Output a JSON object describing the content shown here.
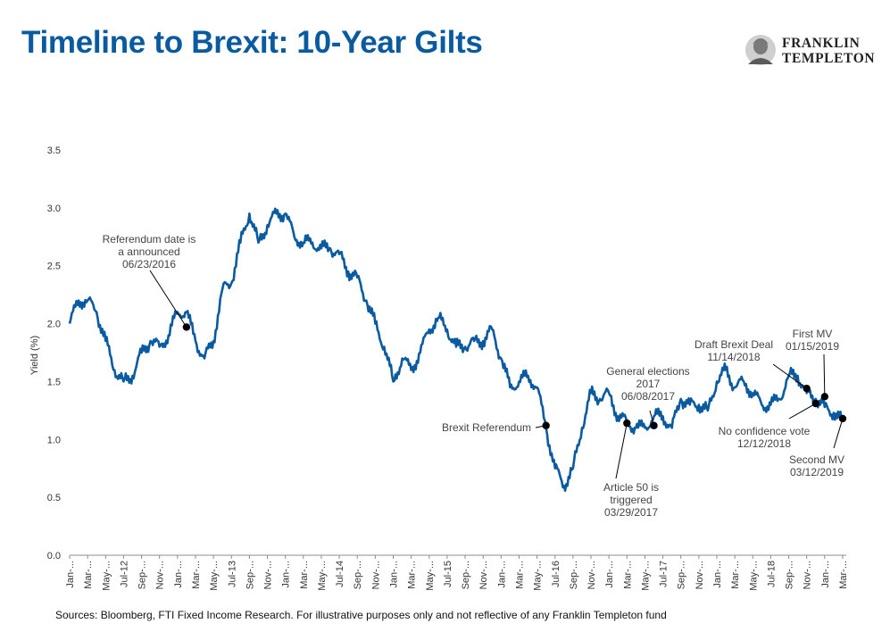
{
  "page": {
    "title": "Timeline to Brexit: 10-Year Gilts",
    "footnote": "Sources: Bloomberg, FTI Fixed Income Research. For illustrative purposes only and not reflective of any Franklin Templeton fund",
    "logo": {
      "line1": "FRANKLIN",
      "line2": "TEMPLETON"
    }
  },
  "chart_data": {
    "type": "line",
    "title": "Timeline to Brexit: 10-Year Gilts",
    "xlabel": "",
    "ylabel": "Yield (%)",
    "ylim": [
      0,
      3.5
    ],
    "yticks": [
      "0.0",
      "0.5",
      "1.0",
      "1.5",
      "2.0",
      "2.5",
      "3.0",
      "3.5"
    ],
    "grid": false,
    "line_color": "#0a5aa0",
    "xticks": [
      "Jan-12",
      "Mar-12",
      "May-12",
      "Jul-12",
      "Sep-12",
      "Nov-12",
      "Jan-13",
      "Mar-13",
      "May-13",
      "Jul-13",
      "Sep-13",
      "Nov-13",
      "Jan-14",
      "Mar-14",
      "May-14",
      "Jul-14",
      "Sep-14",
      "Nov-14",
      "Jan-15",
      "Mar-15",
      "May-15",
      "Jul-15",
      "Sep-15",
      "Nov-15",
      "Jan-16",
      "Mar-16",
      "May-16",
      "Jul-16",
      "Sep-16",
      "Nov-16",
      "Jan-17",
      "Mar-17",
      "May-17",
      "Jul-17",
      "Sep-17",
      "Nov-17",
      "Jan-18",
      "Mar-18",
      "May-18",
      "Jul-18",
      "Sep-18",
      "Nov-18",
      "Jan-19",
      "Mar-19"
    ],
    "xtick_labels": [
      "Jan-...",
      "Mar-...",
      "May-...",
      "Jul-12",
      "Sep-...",
      "Nov-...",
      "Jan-...",
      "Mar-...",
      "May-...",
      "Jul-13",
      "Sep-...",
      "Nov-...",
      "Jan-...",
      "Mar-...",
      "May-...",
      "Jul-14",
      "Sep-...",
      "Nov-...",
      "Jan-...",
      "Mar-...",
      "May-...",
      "Jul-15",
      "Sep-...",
      "Nov-...",
      "Jan-...",
      "Mar-...",
      "May-...",
      "Jul-16",
      "Sep-...",
      "Nov-...",
      "Jan-...",
      "Mar-...",
      "May-...",
      "Jul-17",
      "Sep-...",
      "Nov-...",
      "Jan-...",
      "Mar-...",
      "May-...",
      "Jul-18",
      "Sep-...",
      "Nov-...",
      "Jan-...",
      "Mar-..."
    ],
    "series": [
      {
        "x": [
          "Jan-12",
          "Feb-12",
          "Mar-12",
          "Apr-12",
          "May-12",
          "Jun-12",
          "Jul-12",
          "Aug-12",
          "Sep-12",
          "Oct-12",
          "Nov-12",
          "Dec-12",
          "Jan-13",
          "Feb-13",
          "Mar-13",
          "Apr-13",
          "May-13",
          "Jun-13",
          "Jul-13",
          "Aug-13",
          "Sep-13",
          "Oct-13",
          "Nov-13",
          "Dec-13",
          "Jan-14",
          "Feb-14",
          "Mar-14",
          "Apr-14",
          "May-14",
          "Jun-14",
          "Jul-14",
          "Aug-14",
          "Sep-14",
          "Oct-14",
          "Nov-14",
          "Dec-14",
          "Jan-15",
          "Feb-15",
          "Mar-15",
          "Apr-15",
          "May-15",
          "Jun-15",
          "Jul-15",
          "Aug-15",
          "Sep-15",
          "Oct-15",
          "Nov-15",
          "Dec-15",
          "Jan-16",
          "Feb-16",
          "Mar-16",
          "Apr-16",
          "May-16",
          "Jun-16",
          "Jul-16",
          "Aug-16",
          "Sep-16",
          "Oct-16",
          "Nov-16",
          "Dec-16",
          "Jan-17",
          "Feb-17",
          "Mar-17",
          "Apr-17",
          "May-17",
          "Jun-17",
          "Jul-17",
          "Aug-17",
          "Sep-17",
          "Oct-17",
          "Nov-17",
          "Dec-17",
          "Jan-18",
          "Feb-18",
          "Mar-18",
          "Apr-18",
          "May-18",
          "Jun-18",
          "Jul-18",
          "Aug-18",
          "Sep-18",
          "Oct-18",
          "Nov-18",
          "Dec-18",
          "Jan-19",
          "Feb-19",
          "Mar-19"
        ],
        "values": [
          2.0,
          2.2,
          2.2,
          2.1,
          1.85,
          1.6,
          1.5,
          1.55,
          1.75,
          1.85,
          1.8,
          1.9,
          2.1,
          2.1,
          1.85,
          1.7,
          1.85,
          2.3,
          2.35,
          2.7,
          2.95,
          2.7,
          2.85,
          2.95,
          2.95,
          2.75,
          2.7,
          2.7,
          2.65,
          2.65,
          2.6,
          2.45,
          2.4,
          2.2,
          2.0,
          1.8,
          1.5,
          1.7,
          1.6,
          1.75,
          1.95,
          2.05,
          1.95,
          1.8,
          1.8,
          1.85,
          1.85,
          1.95,
          1.7,
          1.45,
          1.5,
          1.55,
          1.45,
          1.1,
          0.75,
          0.6,
          0.75,
          1.1,
          1.4,
          1.35,
          1.4,
          1.2,
          1.15,
          1.1,
          1.1,
          1.2,
          1.2,
          1.1,
          1.35,
          1.3,
          1.3,
          1.25,
          1.5,
          1.6,
          1.45,
          1.5,
          1.4,
          1.3,
          1.3,
          1.35,
          1.55,
          1.55,
          1.4,
          1.35,
          1.28,
          1.23,
          1.15
        ]
      }
    ],
    "annotations": [
      {
        "lines": [
          "Referendum date is",
          "a announced",
          "06/23/2016"
        ],
        "x": "Feb-13",
        "y": 1.97
      },
      {
        "lines": [
          "Brexit Referendum"
        ],
        "x": "Jun-16",
        "y": 1.12
      },
      {
        "lines": [
          "Article 50 is",
          "triggered",
          "03/29/2017"
        ],
        "x": "Mar-17",
        "y": 1.14
      },
      {
        "lines": [
          "General elections",
          "2017",
          "06/08/2017"
        ],
        "x": "Jun-17",
        "y": 1.12
      },
      {
        "lines": [
          "Draft Brexit Deal",
          "11/14/2018"
        ],
        "x": "Nov-18",
        "y": 1.44
      },
      {
        "lines": [
          "No confidence vote",
          "12/12/2018"
        ],
        "x": "Dec-18",
        "y": 1.31
      },
      {
        "lines": [
          "First MV",
          "01/15/2019"
        ],
        "x": "Jan-19",
        "y": 1.37
      },
      {
        "lines": [
          "Second MV",
          "03/12/2019"
        ],
        "x": "Mar-19",
        "y": 1.18
      }
    ]
  }
}
